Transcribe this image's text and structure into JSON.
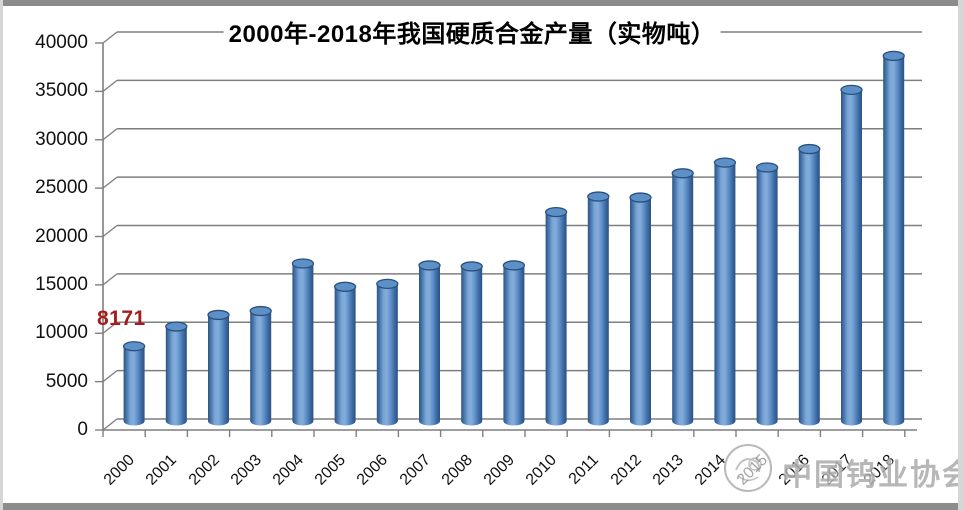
{
  "chart_data": {
    "type": "bar",
    "style": "3d-cylinder",
    "title": "2000年-2018年我国硬质合金产量（实物吨）",
    "categories": [
      "2000",
      "2001",
      "2002",
      "2003",
      "2004",
      "2005",
      "2006",
      "2007",
      "2008",
      "2009",
      "2010",
      "2011",
      "2012",
      "2013",
      "2014",
      "2015",
      "2016",
      "2017",
      "2018"
    ],
    "values": [
      8171,
      10200,
      11400,
      11800,
      16700,
      14300,
      14600,
      16500,
      16400,
      16500,
      22000,
      23600,
      23500,
      26000,
      27100,
      26600,
      28500,
      34600,
      38100
    ],
    "xlabel": "",
    "ylabel": "",
    "ylim": [
      0,
      40000
    ],
    "yticks": [
      0,
      5000,
      10000,
      15000,
      20000,
      25000,
      30000,
      35000,
      40000
    ],
    "grid": true,
    "legend_position": "none",
    "bar_color": "#4f81bd",
    "bar_edge_color": "#2b5180",
    "gridline_color": "#7f7f7f",
    "annotations": [
      {
        "target_category": "2000",
        "text": "8171",
        "color": "#a61c1c"
      }
    ]
  },
  "watermark": {
    "text": "中国钨业协会",
    "logo": "association-circular-logo",
    "color": "#ababab"
  }
}
